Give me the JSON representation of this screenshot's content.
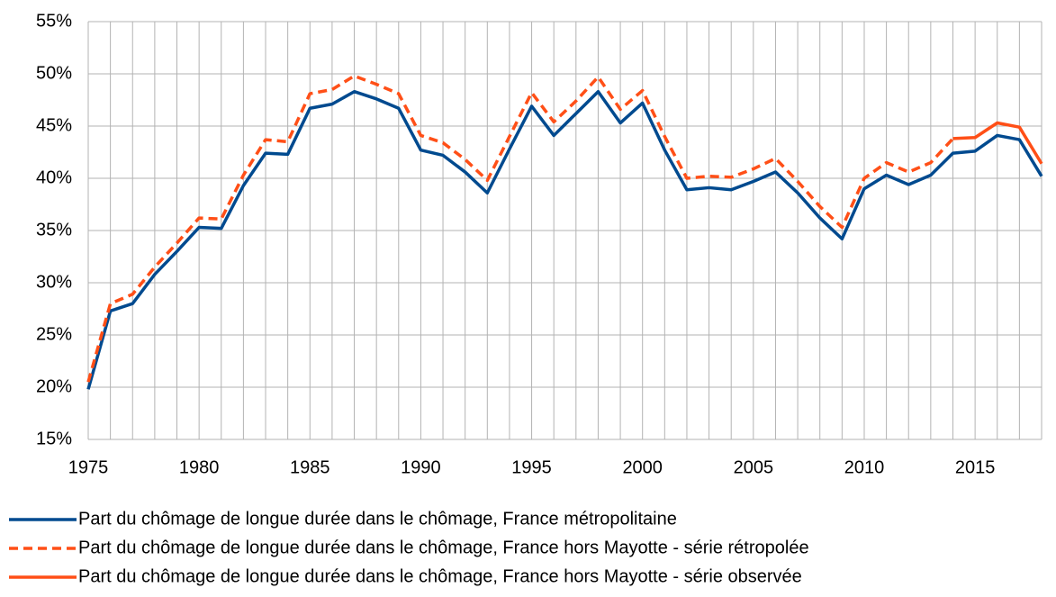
{
  "chart_data": {
    "type": "line",
    "x": [
      1975,
      1976,
      1977,
      1978,
      1979,
      1980,
      1981,
      1982,
      1983,
      1984,
      1985,
      1986,
      1987,
      1988,
      1989,
      1990,
      1991,
      1992,
      1993,
      1994,
      1995,
      1996,
      1997,
      1998,
      1999,
      2000,
      2001,
      2002,
      2003,
      2004,
      2005,
      2006,
      2007,
      2008,
      2009,
      2010,
      2011,
      2012,
      2013,
      2014,
      2015,
      2016,
      2017,
      2018
    ],
    "series": [
      {
        "name": "Part du chômage de longue durée dans le chômage, France métropolitaine",
        "color": "#004a8f",
        "dash": false,
        "values": [
          19.8,
          27.3,
          28.0,
          30.8,
          33.0,
          35.3,
          35.2,
          39.3,
          42.4,
          42.3,
          46.7,
          47.1,
          48.3,
          47.6,
          46.7,
          42.7,
          42.2,
          40.6,
          38.6,
          42.8,
          46.9,
          44.1,
          46.2,
          48.3,
          45.3,
          47.2,
          42.7,
          38.9,
          39.1,
          38.9,
          39.7,
          40.6,
          38.6,
          36.2,
          34.2,
          39.0,
          40.3,
          39.4,
          40.3,
          42.4,
          42.6,
          44.1,
          43.7,
          40.2
        ]
      },
      {
        "name": "Part du chômage de longue durée dans le chômage, France hors Mayotte - série rétropolée",
        "color": "#ff4f17",
        "dash": true,
        "values": [
          20.5,
          28.0,
          28.9,
          31.5,
          33.8,
          36.2,
          36.1,
          40.3,
          43.7,
          43.5,
          48.1,
          48.5,
          49.8,
          49.0,
          48.1,
          44.1,
          43.4,
          41.8,
          39.8,
          44.0,
          48.2,
          45.4,
          47.4,
          49.7,
          46.6,
          48.4,
          44.0,
          40.0,
          40.2,
          40.1,
          40.9,
          41.9,
          39.7,
          37.3,
          35.3,
          40.0,
          41.5,
          40.6,
          41.5,
          43.8,
          null,
          null,
          null,
          null
        ]
      },
      {
        "name": "Part du chômage de longue durée dans le chômage, France hors Mayotte - série observée",
        "color": "#ff4f17",
        "dash": false,
        "values": [
          null,
          null,
          null,
          null,
          null,
          null,
          null,
          null,
          null,
          null,
          null,
          null,
          null,
          null,
          null,
          null,
          null,
          null,
          null,
          null,
          null,
          null,
          null,
          null,
          null,
          null,
          null,
          null,
          null,
          null,
          null,
          null,
          null,
          null,
          null,
          null,
          null,
          null,
          null,
          43.8,
          43.9,
          45.3,
          44.9,
          41.4
        ]
      }
    ],
    "xlim": [
      1975,
      2018
    ],
    "xticks": [
      1975,
      1980,
      1985,
      1990,
      1995,
      2000,
      2005,
      2010,
      2015
    ],
    "ylim": [
      15,
      55
    ],
    "yticks": [
      {
        "value": 15,
        "label": "15%"
      },
      {
        "value": 20,
        "label": "20%"
      },
      {
        "value": 25,
        "label": "25%"
      },
      {
        "value": 30,
        "label": "30%"
      },
      {
        "value": 35,
        "label": "35%"
      },
      {
        "value": 40,
        "label": "40%"
      },
      {
        "value": 45,
        "label": "45%"
      },
      {
        "value": 50,
        "label": "50%"
      },
      {
        "value": 55,
        "label": "55%"
      }
    ],
    "grid": true,
    "legend": "bottom"
  }
}
